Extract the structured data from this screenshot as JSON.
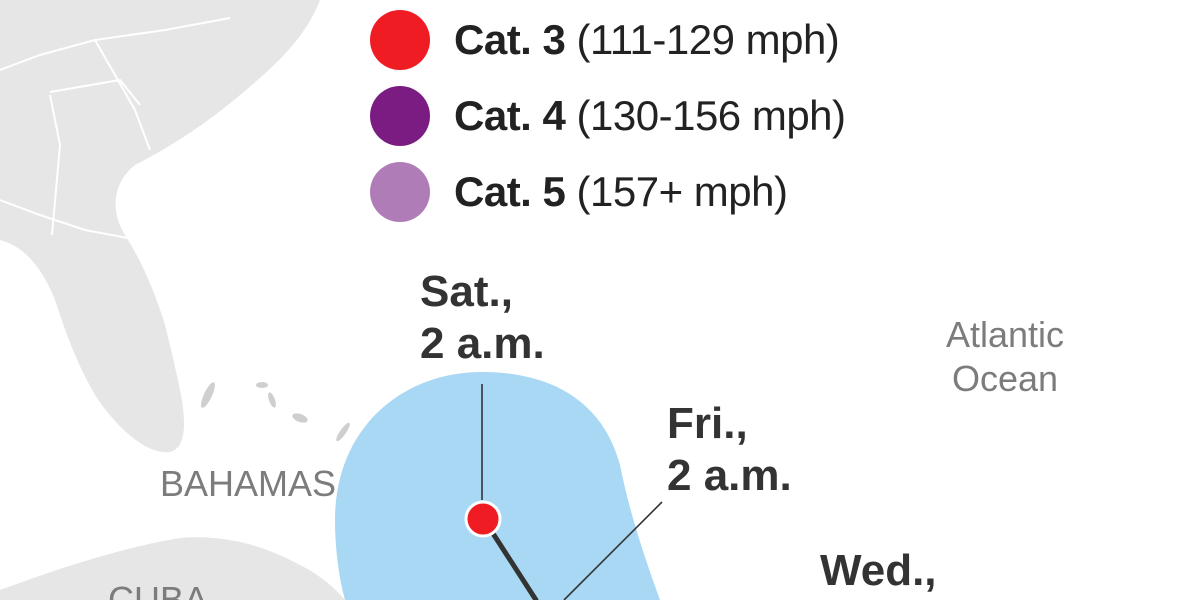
{
  "legend": [
    {
      "category": "Cat. 3",
      "range": "(111-129 mph)",
      "color": "#ef1c24"
    },
    {
      "category": "Cat. 4",
      "range": "(130-156 mph)",
      "color": "#7b1c83"
    },
    {
      "category": "Cat. 5",
      "range": "(157+ mph)",
      "color": "#b07cb8"
    }
  ],
  "time_labels": {
    "saturday": {
      "line1": "Sat.,",
      "line2": "2 a.m."
    },
    "friday": {
      "line1": "Fri.,",
      "line2": "2 a.m."
    },
    "wednesday": {
      "line1": "Wed.,"
    }
  },
  "geo_labels": {
    "atlantic": {
      "line1": "Atlantic",
      "line2": "Ocean"
    },
    "bahamas": "BAHAMAS",
    "cuba": "CUBA"
  },
  "colors": {
    "land": "#e6e6e6",
    "land_border": "#ffffff",
    "forecast_cone": "#a9d8f5",
    "track_line": "#333333",
    "storm_position": "#ef1c24"
  }
}
